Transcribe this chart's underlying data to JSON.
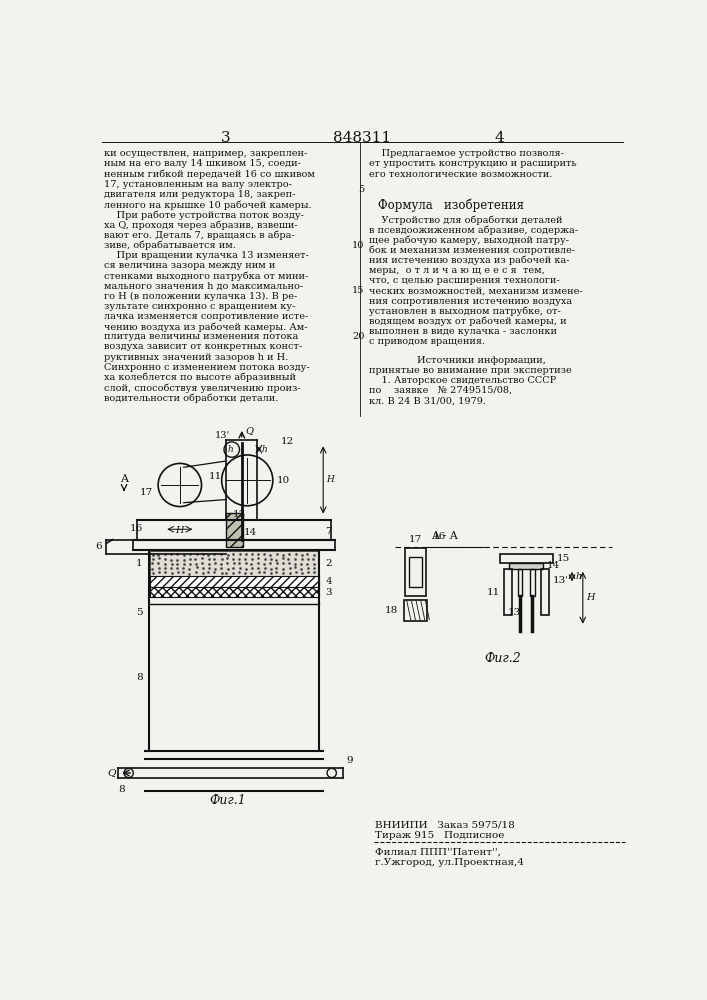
{
  "page_color": "#f2f2ee",
  "text_color": "#111111",
  "line_color": "#111111",
  "header": {
    "left_page_num": "3",
    "center_patent_num": "848311",
    "right_page_num": "4"
  },
  "left_column_text": [
    "ки осуществлен, например, закреплен-",
    "ным на его валу 14 шкивом 15, соеди-",
    "ненным гибкой передачей 16 со шкивом",
    "17, установленным на валу электро-",
    "двигателя или редуктора 18, закреп-",
    "ленного на крышке 10 рабочей камеры.",
    "    При работе устройства поток возду-",
    "ха Q, проходя через абразив, взвеши-",
    "вают его. Деталь 7, вращаясь в абра-",
    "зиве, обрабатывается им.",
    "    При вращении кулачка 13 изменяет-",
    "ся величина зазора между ним и",
    "стенками выходного патрубка от мини-",
    "мального значения h до максимально-",
    "го H (в положении кулачка 13). В ре-",
    "зультате синхронно с вращением ку-",
    "лачка изменяется сопротивление исте-",
    "чению воздуха из рабочей камеры. Ам-",
    "плитуда величины изменения потока",
    "воздуха зависит от конкретных конст-",
    "руктивных значений зазоров h и H.",
    "Синхронно с изменением потока возду-",
    "ха колеблется по высоте абразивный",
    "слой, способствуя увеличению произ-",
    "водительности обработки детали."
  ],
  "right_column_text_top": [
    "    Предлагаемое устройство позволя-",
    "ет упростить конструкцию и расширить",
    "его технологические возможности."
  ],
  "formula_header": "Формула   изобретения",
  "formula_text": [
    "    Устройство для обработки деталей",
    "в псевдоожиженном абразиве, содержа-",
    "щее рабочую камеру, выходной патру-",
    "бок и механизм изменения сопротивле-",
    "ния истечению воздуха из рабочей ка-",
    "меры,  о т л и ч а ю щ е е с я  тем,",
    "что, с целью расширения технологи-",
    "ческих возможностей, механизм измене-",
    "ния сопротивления истечению воздуха",
    "установлен в выходном патрубке, от-",
    "водящем воздух от рабочей камеры, и",
    "выполнен в виде кулачка - заслонки",
    "с приводом вращения."
  ],
  "sources_header": "        Источники информации,",
  "sources_text": [
    "принятые во внимание при экспертизе",
    "    1. Авторское свидетельство СССР",
    "по    заявке   № 2749515/08,",
    "кл. В 24 В 31/00, 1979."
  ],
  "footer_left": "ВНИИПИ   Заказ 5975/18",
  "footer_mid": "Тираж 915   Подписное",
  "footer_branch": "Филиал ППП''Патент'',",
  "footer_city": "г.Ужгород, ул.Проектная,4"
}
